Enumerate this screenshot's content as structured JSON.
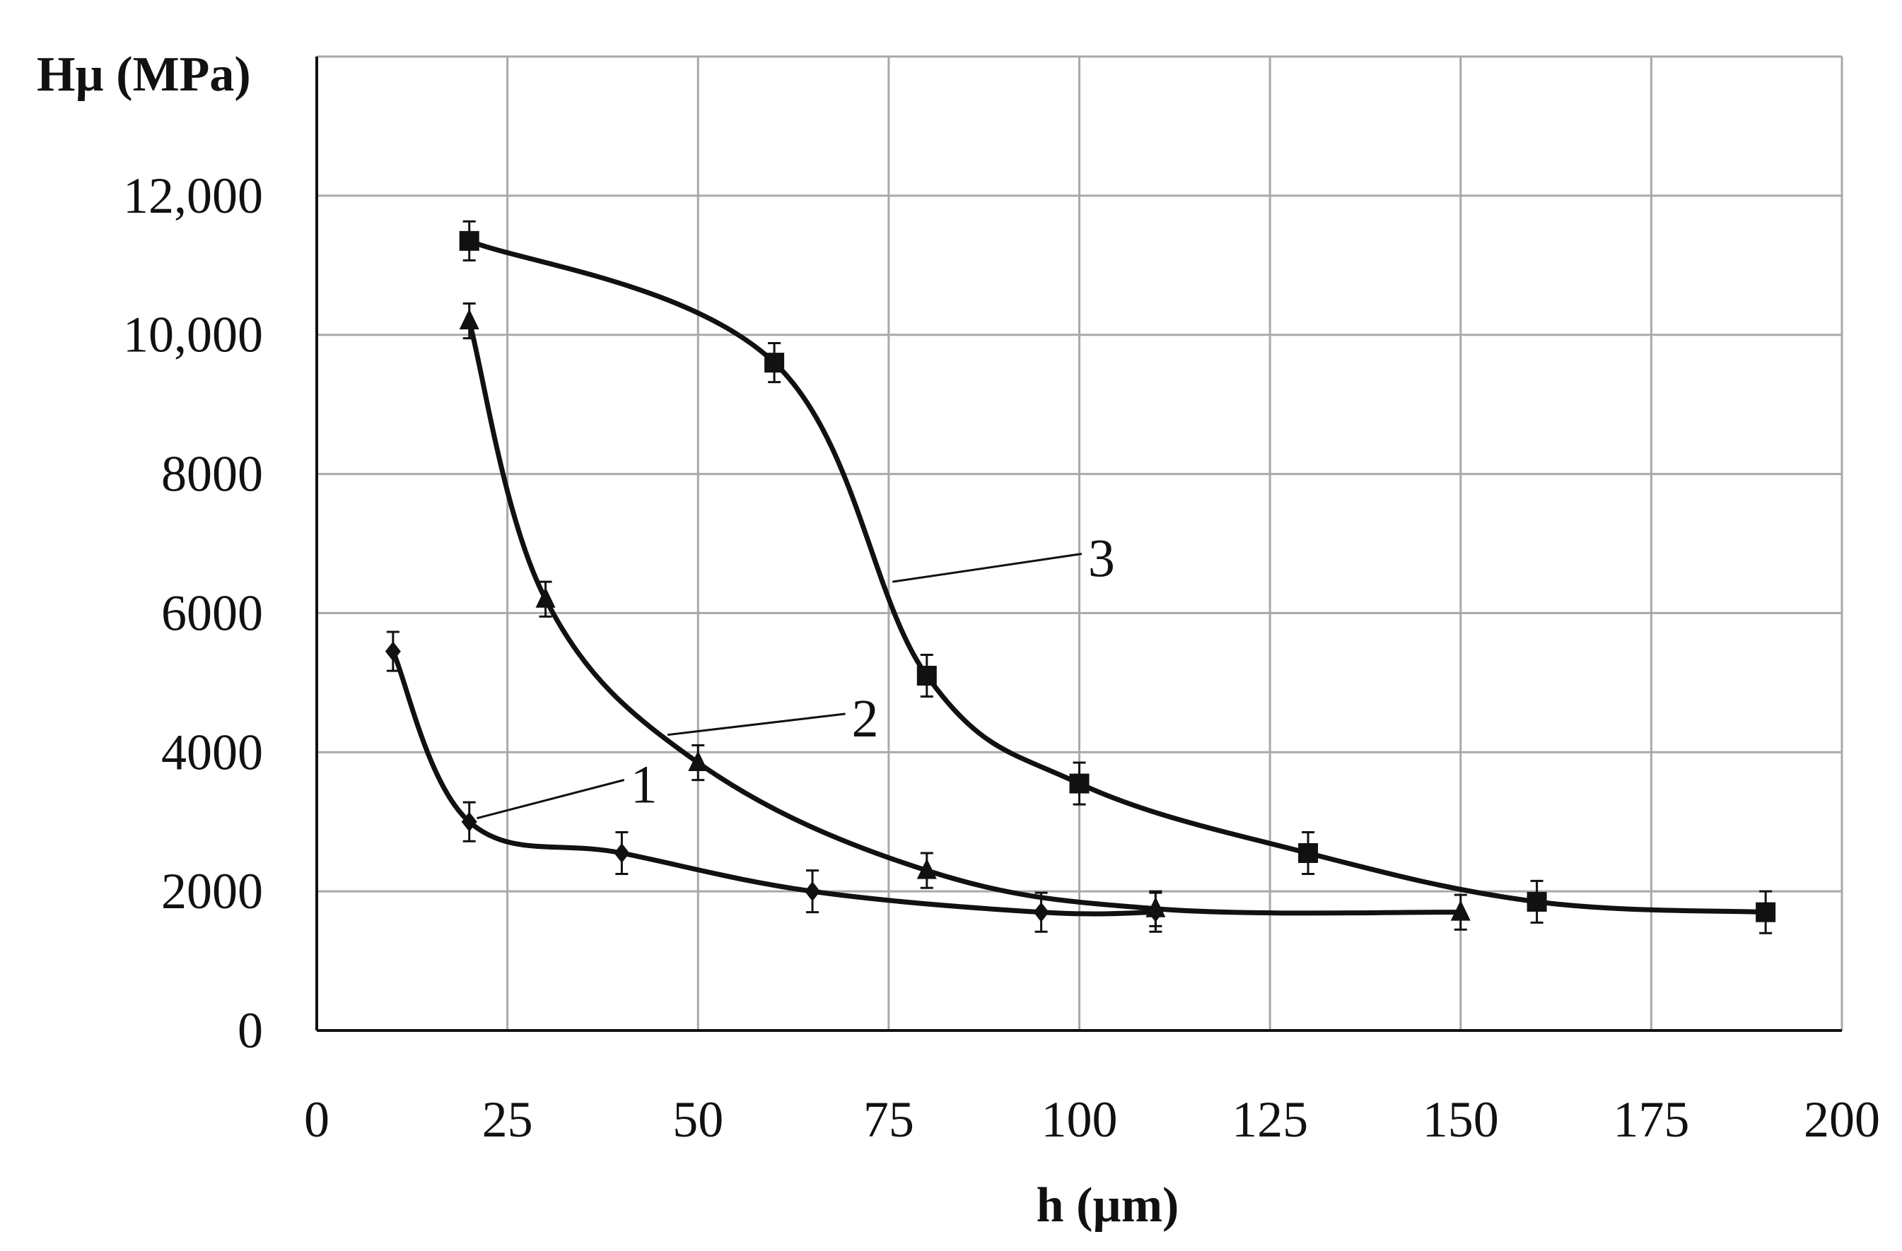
{
  "chart_data": {
    "type": "line",
    "title": "",
    "xlabel": "h (µm)",
    "ylabel": "Hµ (MPa)",
    "xlim": [
      0,
      200
    ],
    "ylim": [
      0,
      14000
    ],
    "grid": true,
    "x_ticks": [
      0,
      25,
      50,
      75,
      100,
      125,
      150,
      175,
      200
    ],
    "x_tick_labels": [
      "0",
      "25",
      "50",
      "75",
      "100",
      "125",
      "150",
      "175",
      "200"
    ],
    "y_ticks": [
      0,
      2000,
      4000,
      6000,
      8000,
      10000,
      12000
    ],
    "y_tick_labels": [
      "0",
      "2000",
      "4000",
      "6000",
      "8000",
      "10,000",
      "12,000"
    ],
    "series": [
      {
        "name": "1",
        "marker": "diamond",
        "x": [
          10,
          20,
          40,
          65,
          95,
          110
        ],
        "y": [
          5450,
          3000,
          2550,
          2000,
          1700,
          1700
        ],
        "error": [
          280,
          280,
          300,
          300,
          280,
          280
        ],
        "label": "1",
        "label_at": [
          29,
          3500
        ]
      },
      {
        "name": "2",
        "marker": "triangle",
        "x": [
          20,
          30,
          50,
          80,
          110,
          150
        ],
        "y": [
          10200,
          6200,
          3850,
          2300,
          1750,
          1700
        ],
        "error": [
          250,
          250,
          250,
          250,
          250,
          250
        ],
        "label": "2",
        "label_at": [
          58,
          4450
        ]
      },
      {
        "name": "3",
        "marker": "square",
        "x": [
          20,
          60,
          80,
          100,
          130,
          160,
          190
        ],
        "y": [
          11350,
          9600,
          5100,
          3550,
          2550,
          1850,
          1700
        ],
        "error": [
          280,
          280,
          300,
          300,
          300,
          300,
          300
        ],
        "label": "3",
        "label_at": [
          89,
          6750
        ]
      }
    ]
  }
}
